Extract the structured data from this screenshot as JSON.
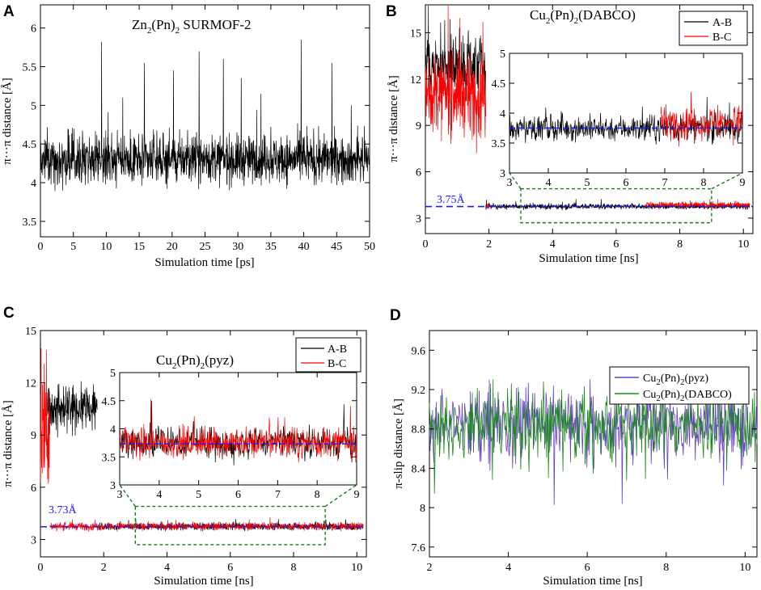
{
  "colors": {
    "black": "#000000",
    "red": "#ff0000",
    "purple": "#6a3fc8",
    "green": "#1c8a1c",
    "blue_ref": "#1a1aff",
    "connector": "#1a7a1a"
  },
  "chart_data": [
    {
      "panel": "A",
      "type": "line",
      "title_main": "Zn",
      "title_sub1": "2",
      "title_mid": "(Pn)",
      "title_sub2": "2",
      "title_tail": " SURMOF-2",
      "xlabel": "Simulation time [ps]",
      "ylabel": "π···π distance [Å]",
      "xlim": [
        0,
        50
      ],
      "ylim": [
        3.3,
        6.3
      ],
      "xticks": [
        "0",
        "5",
        "10",
        "15",
        "20",
        "25",
        "30",
        "35",
        "40",
        "45",
        "50"
      ],
      "yticks": [
        "3.5",
        "4",
        "4.5",
        "5",
        "5.5",
        "6"
      ],
      "series": [
        {
          "name": "Zn2(Pn)2 SURMOF-2",
          "color": "#000000",
          "mean": 4.3,
          "noise": 0.22,
          "peaks": [
            [
              9.3,
              5.82
            ],
            [
              12.5,
              5.1
            ],
            [
              15.8,
              5.55
            ],
            [
              20.2,
              5.45
            ],
            [
              24.1,
              5.7
            ],
            [
              27.8,
              5.6
            ],
            [
              30.5,
              5.35
            ],
            [
              33.5,
              5.15
            ],
            [
              39.6,
              5.85
            ],
            [
              44.3,
              5.55
            ],
            [
              47.2,
              5.0
            ]
          ]
        }
      ]
    },
    {
      "panel": "B",
      "type": "line",
      "title_main": "Cu",
      "title_sub1": "2",
      "title_mid": "(Pn)",
      "title_sub2": "2",
      "title_tail": "(DABCO)",
      "xlabel": "Simulation time [ns]",
      "ylabel": "π···π distance [Å]",
      "xlim": [
        0,
        10.3
      ],
      "ylim": [
        2.0,
        16.8
      ],
      "xticks": [
        "0",
        "2",
        "4",
        "6",
        "8",
        "10"
      ],
      "yticks": [
        "3",
        "6",
        "9",
        "12",
        "15"
      ],
      "reference_value": 3.75,
      "reference_label": "3.75Å",
      "legend": [
        "A-B",
        "B-C"
      ],
      "series": [
        {
          "name": "A-B",
          "color": "#000000",
          "segments": [
            [
              0,
              1.9,
              12.8,
              1.3
            ],
            [
              1.9,
              10.2,
              3.75,
              0.12
            ]
          ]
        },
        {
          "name": "B-C",
          "color": "#ff0000",
          "segments": [
            [
              0,
              1.9,
              11.0,
              1.8
            ],
            [
              1.9,
              2.0,
              3.85,
              0.15
            ],
            [
              6.9,
              10.2,
              3.85,
              0.15
            ]
          ]
        }
      ],
      "inset": {
        "xlim": [
          3,
          9
        ],
        "ylim": [
          3,
          5
        ],
        "xticks": [
          "3",
          "4",
          "5",
          "6",
          "7",
          "8",
          "9"
        ],
        "yticks": [
          "3",
          "3.5",
          "4",
          "4.5",
          "5"
        ]
      }
    },
    {
      "panel": "C",
      "type": "line",
      "title_main": "Cu",
      "title_sub1": "2",
      "title_mid": "(Pn)",
      "title_sub2": "2",
      "title_tail": "(pyz)",
      "xlabel": "Simulation time [ns]",
      "ylabel": "π···π distance [Å]",
      "xlim": [
        0,
        10.3
      ],
      "ylim": [
        2.0,
        15.0
      ],
      "xticks": [
        "0",
        "2",
        "4",
        "6",
        "8",
        "10"
      ],
      "yticks": [
        "3",
        "6",
        "9",
        "12",
        "15"
      ],
      "reference_value": 3.73,
      "reference_label": "3.73Å",
      "legend": [
        "A-B",
        "B-C"
      ],
      "series": [
        {
          "name": "A-B",
          "color": "#000000",
          "segments": [
            [
              0.2,
              1.8,
              10.6,
              0.9
            ],
            [
              1.8,
              10.2,
              3.75,
              0.15
            ]
          ]
        },
        {
          "name": "B-C",
          "color": "#ff0000",
          "segments": [
            [
              0,
              0.3,
              9.5,
              3.0
            ],
            [
              0.3,
              10.2,
              3.75,
              0.15
            ]
          ]
        }
      ],
      "inset": {
        "xlim": [
          3,
          9
        ],
        "ylim": [
          3,
          5
        ],
        "xticks": [
          "3",
          "4",
          "5",
          "6",
          "7",
          "8",
          "9"
        ],
        "yticks": [
          "3",
          "3.5",
          "4",
          "4.5",
          "5"
        ]
      }
    },
    {
      "panel": "D",
      "type": "line",
      "xlabel": "Simulation time [ns]",
      "ylabel": "π-slip distance [Å]",
      "xlim": [
        2,
        10.3
      ],
      "ylim": [
        7.5,
        9.8
      ],
      "xticks": [
        "2",
        "4",
        "6",
        "8",
        "10"
      ],
      "yticks": [
        "7.6",
        "8",
        "8.4",
        "8.8",
        "9.2",
        "9.6"
      ],
      "legend": [
        {
          "main": "Cu",
          "sub1": "2",
          "mid": "(Pn)",
          "sub2": "2",
          "tail": "(pyz)"
        },
        {
          "main": "Cu",
          "sub1": "2",
          "mid": "(Pn)",
          "sub2": "2",
          "tail": "(DABCO)"
        }
      ],
      "series": [
        {
          "name": "Cu2(Pn)2(pyz)",
          "color": "#6a3fc8",
          "mean": 8.85,
          "noise": 0.26
        },
        {
          "name": "Cu2(Pn)2(DABCO)",
          "color": "#1c8a1c",
          "mean": 8.85,
          "noise": 0.26
        }
      ]
    }
  ]
}
